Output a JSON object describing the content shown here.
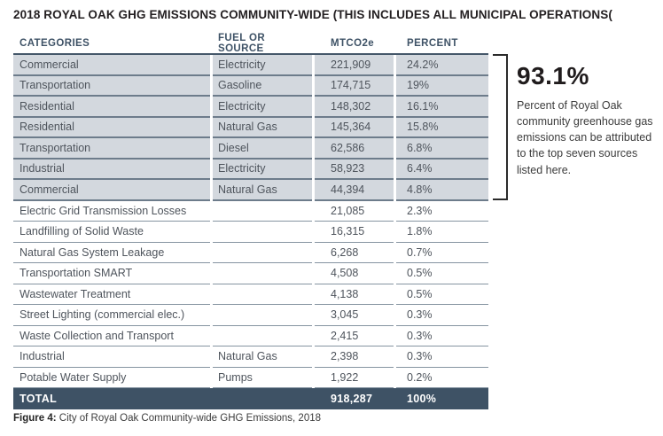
{
  "title": "2018 ROYAL OAK GHG EMISSIONS COMMUNITY-WIDE (THIS INCLUDES ALL MUNICIPAL OPERATIONS(",
  "table": {
    "headers": [
      "CATEGORIES",
      "FUEL OR SOURCE",
      "MTCO2e",
      "PERCENT"
    ],
    "rows": [
      {
        "category": "Commercial",
        "fuel": "Electricity",
        "mtco2e": "221,909",
        "percent": "24.2%",
        "shaded": true
      },
      {
        "category": "Transportation",
        "fuel": "Gasoline",
        "mtco2e": "174,715",
        "percent": "19%",
        "shaded": true
      },
      {
        "category": "Residential",
        "fuel": "Electricity",
        "mtco2e": "148,302",
        "percent": "16.1%",
        "shaded": true
      },
      {
        "category": "Residential",
        "fuel": "Natural Gas",
        "mtco2e": "145,364",
        "percent": "15.8%",
        "shaded": true
      },
      {
        "category": "Transportation",
        "fuel": "Diesel",
        "mtco2e": "62,586",
        "percent": "6.8%",
        "shaded": true
      },
      {
        "category": "Industrial",
        "fuel": "Electricity",
        "mtco2e": "58,923",
        "percent": "6.4%",
        "shaded": true
      },
      {
        "category": "Commercial",
        "fuel": "Natural Gas",
        "mtco2e": "44,394",
        "percent": "4.8%",
        "shaded": true
      },
      {
        "category": "Electric Grid Transmission Losses",
        "fuel": "",
        "mtco2e": "21,085",
        "percent": "2.3%",
        "shaded": false
      },
      {
        "category": "Landfilling of Solid Waste",
        "fuel": "",
        "mtco2e": "16,315",
        "percent": "1.8%",
        "shaded": false
      },
      {
        "category": "Natural Gas System Leakage",
        "fuel": "",
        "mtco2e": "6,268",
        "percent": "0.7%",
        "shaded": false
      },
      {
        "category": "Transportation SMART",
        "fuel": "",
        "mtco2e": "4,508",
        "percent": "0.5%",
        "shaded": false
      },
      {
        "category": "Wastewater Treatment",
        "fuel": "",
        "mtco2e": "4,138",
        "percent": "0.5%",
        "shaded": false
      },
      {
        "category": "Street Lighting (commercial elec.)",
        "fuel": "",
        "mtco2e": "3,045",
        "percent": "0.3%",
        "shaded": false
      },
      {
        "category": "Waste Collection and Transport",
        "fuel": "",
        "mtco2e": "2,415",
        "percent": "0.3%",
        "shaded": false
      },
      {
        "category": "Industrial",
        "fuel": "Natural Gas",
        "mtco2e": "2,398",
        "percent": "0.3%",
        "shaded": false
      },
      {
        "category": "Potable Water Supply",
        "fuel": "Pumps",
        "mtco2e": "1,922",
        "percent": "0.2%",
        "shaded": false
      }
    ],
    "total": {
      "label": "TOTAL",
      "mtco2e": "918,287",
      "percent": "100%"
    }
  },
  "callout": {
    "value": "93.1%",
    "text": "Percent of Royal Oak community greenhouse gas emissions can be attributed to the top seven sources listed here."
  },
  "caption": {
    "label": "Figure 4:",
    "text": " City of Royal Oak Community-wide GHG Emissions, 2018"
  },
  "colors": {
    "row_shaded": "#d3d8de",
    "total_row_bg": "#3e5265",
    "header_text": "#3e5266",
    "divider_shaded": "#6d7c8b",
    "divider_light": "#8694a1",
    "bracket": "#2b2b2b"
  }
}
